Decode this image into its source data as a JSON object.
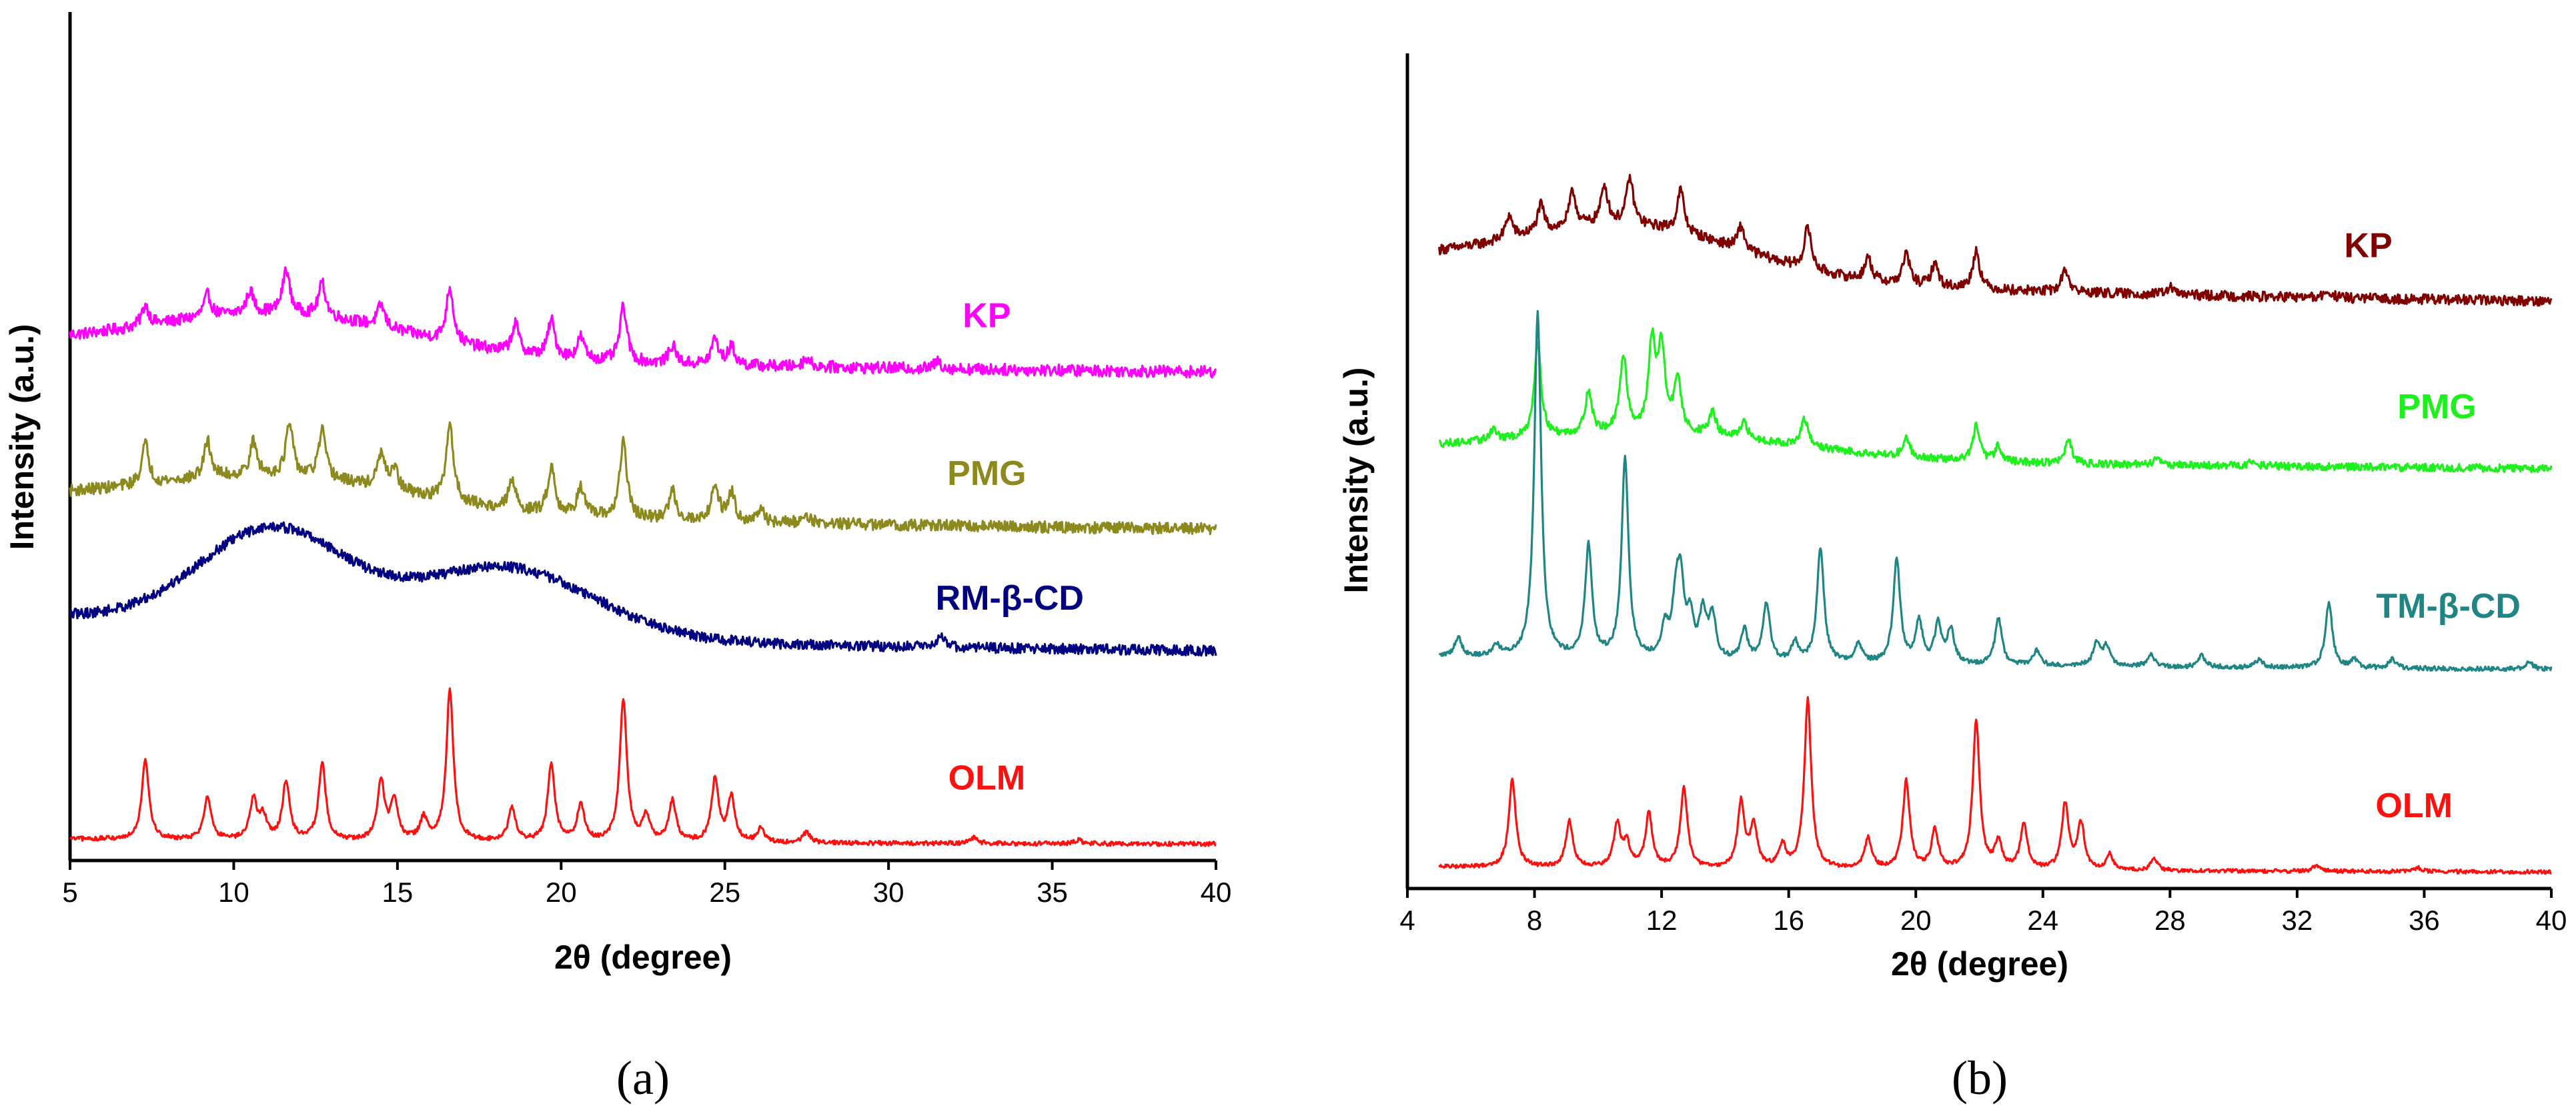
{
  "chart_data": [
    {
      "panel": "a",
      "caption": "(a)",
      "type": "line",
      "xlabel": "2θ (degree)",
      "ylabel": "Intensity (a.u.)",
      "xlim": [
        5,
        40
      ],
      "xticks": [
        5,
        10,
        15,
        20,
        25,
        30,
        35,
        40
      ],
      "y_ticks_shown": false,
      "grid": false,
      "series": [
        {
          "name": "KP",
          "color": "#ff00ff",
          "offset": 6.3,
          "noise": 0.16,
          "background": "kp_a",
          "points": [
            [
              5,
              0
            ],
            [
              7.3,
              0.28
            ],
            [
              9.2,
              0.3
            ],
            [
              10.5,
              0.3
            ],
            [
              11.6,
              0.6
            ],
            [
              12.7,
              0.45
            ],
            [
              14.5,
              0.3
            ],
            [
              16.6,
              0.75
            ],
            [
              18.6,
              0.4
            ],
            [
              19.7,
              0.5
            ],
            [
              20.6,
              0.3
            ],
            [
              21.9,
              0.75
            ],
            [
              23.4,
              0.25
            ],
            [
              24.7,
              0.35
            ],
            [
              25.2,
              0.25
            ],
            [
              27.5,
              0.12
            ],
            [
              31.5,
              0.1
            ],
            [
              40,
              0
            ]
          ]
        },
        {
          "name": "PMG",
          "color": "#8c8a1e",
          "offset": 4.15,
          "noise": 0.16,
          "background": "pmg_a",
          "points": [
            [
              5,
              0
            ],
            [
              7.3,
              0.55
            ],
            [
              9.2,
              0.5
            ],
            [
              10.6,
              0.45
            ],
            [
              11.7,
              0.7
            ],
            [
              12.7,
              0.65
            ],
            [
              14.5,
              0.45
            ],
            [
              14.9,
              0.3
            ],
            [
              16.6,
              1.05
            ],
            [
              18.5,
              0.4
            ],
            [
              19.7,
              0.65
            ],
            [
              20.6,
              0.4
            ],
            [
              21.9,
              1.05
            ],
            [
              23.4,
              0.4
            ],
            [
              24.7,
              0.5
            ],
            [
              25.2,
              0.4
            ],
            [
              26.1,
              0.15
            ],
            [
              27.5,
              0.12
            ],
            [
              40,
              0
            ]
          ]
        },
        {
          "name": "RM-β-CD",
          "color": "#000080",
          "offset": 2.45,
          "noise": 0.14,
          "background": "rmcd_a",
          "points": [
            [
              5,
              0
            ],
            [
              31.6,
              0.2
            ],
            [
              40,
              0
            ]
          ]
        },
        {
          "name": "OLM",
          "color": "#ff1010",
          "offset": 0,
          "noise": 0.06,
          "background": "olm",
          "points": [
            [
              5,
              0
            ],
            [
              7.3,
              1.1
            ],
            [
              9.2,
              0.6
            ],
            [
              10.6,
              0.55
            ],
            [
              10.9,
              0.3
            ],
            [
              11.6,
              0.8
            ],
            [
              12.7,
              1.05
            ],
            [
              14.5,
              0.8
            ],
            [
              14.9,
              0.55
            ],
            [
              15.8,
              0.3
            ],
            [
              16.6,
              2.05
            ],
            [
              18.5,
              0.45
            ],
            [
              19.7,
              1.05
            ],
            [
              20.6,
              0.5
            ],
            [
              21.9,
              1.95
            ],
            [
              22.6,
              0.35
            ],
            [
              23.4,
              0.55
            ],
            [
              24.7,
              0.85
            ],
            [
              25.2,
              0.6
            ],
            [
              26.1,
              0.2
            ],
            [
              27.5,
              0.15
            ],
            [
              32.6,
              0.08
            ],
            [
              35.8,
              0.05
            ],
            [
              40,
              0
            ]
          ]
        }
      ]
    },
    {
      "panel": "b",
      "caption": "(b)",
      "type": "line",
      "xlabel": "2θ (degree)",
      "ylabel": "Intensity (a.u.)",
      "xlim": [
        4,
        40
      ],
      "xticks": [
        4,
        8,
        12,
        16,
        20,
        24,
        28,
        32,
        36,
        40
      ],
      "y_ticks_shown": false,
      "grid": false,
      "series": [
        {
          "name": "KP",
          "color": "#800000",
          "offset": 7.3,
          "noise": 0.13,
          "background": "kp_b",
          "points": [
            [
              5,
              0
            ],
            [
              7.2,
              0.3
            ],
            [
              8.2,
              0.35
            ],
            [
              9.2,
              0.45
            ],
            [
              10.2,
              0.5
            ],
            [
              11.0,
              0.6
            ],
            [
              12.6,
              0.55
            ],
            [
              14.5,
              0.3
            ],
            [
              16.6,
              0.55
            ],
            [
              18.5,
              0.3
            ],
            [
              19.7,
              0.4
            ],
            [
              20.6,
              0.3
            ],
            [
              21.9,
              0.5
            ],
            [
              24.7,
              0.3
            ],
            [
              28,
              0.1
            ],
            [
              33,
              0.08
            ],
            [
              40,
              0
            ]
          ]
        },
        {
          "name": "PMG",
          "color": "#1ef01e",
          "offset": 5.2,
          "noise": 0.1,
          "background": "pmg_b",
          "points": [
            [
              5,
              0
            ],
            [
              6.7,
              0.15
            ],
            [
              8.1,
              1.25
            ],
            [
              9.7,
              0.55
            ],
            [
              10.8,
              1.0
            ],
            [
              11.7,
              1.15
            ],
            [
              12.0,
              1.05
            ],
            [
              12.5,
              0.7
            ],
            [
              13.6,
              0.3
            ],
            [
              14.6,
              0.2
            ],
            [
              16.5,
              0.35
            ],
            [
              19.7,
              0.25
            ],
            [
              21.9,
              0.45
            ],
            [
              22.6,
              0.2
            ],
            [
              24.8,
              0.3
            ],
            [
              27.6,
              0.1
            ],
            [
              30.6,
              0.08
            ],
            [
              40,
              0
            ]
          ]
        },
        {
          "name": "TM-β-CD",
          "color": "#208585",
          "offset": 2.6,
          "noise": 0.06,
          "background": "tmcd_b",
          "points": [
            [
              5,
              0
            ],
            [
              5.6,
              0.25
            ],
            [
              6.8,
              0.15
            ],
            [
              8.1,
              4.5
            ],
            [
              9.7,
              1.45
            ],
            [
              10.85,
              2.6
            ],
            [
              12.1,
              0.4
            ],
            [
              12.45,
              0.7
            ],
            [
              12.6,
              0.9
            ],
            [
              12.9,
              0.5
            ],
            [
              13.3,
              0.6
            ],
            [
              13.6,
              0.55
            ],
            [
              14.6,
              0.4
            ],
            [
              15.3,
              0.75
            ],
            [
              16.2,
              0.25
            ],
            [
              17.0,
              1.5
            ],
            [
              18.2,
              0.25
            ],
            [
              19.4,
              1.35
            ],
            [
              20.1,
              0.55
            ],
            [
              20.7,
              0.5
            ],
            [
              21.1,
              0.45
            ],
            [
              22.6,
              0.6
            ],
            [
              23.8,
              0.2
            ],
            [
              25.7,
              0.3
            ],
            [
              26.0,
              0.25
            ],
            [
              27.4,
              0.15
            ],
            [
              29.0,
              0.15
            ],
            [
              30.8,
              0.1
            ],
            [
              33.0,
              0.85
            ],
            [
              33.8,
              0.1
            ],
            [
              35.0,
              0.12
            ],
            [
              39.3,
              0.1
            ],
            [
              40,
              0
            ]
          ]
        },
        {
          "name": "OLM",
          "color": "#ff1010",
          "offset": 0,
          "noise": 0.05,
          "background": "olm",
          "points": [
            [
              5,
              0
            ],
            [
              7.3,
              1.15
            ],
            [
              9.1,
              0.6
            ],
            [
              10.6,
              0.55
            ],
            [
              10.9,
              0.3
            ],
            [
              11.6,
              0.7
            ],
            [
              12.7,
              1.05
            ],
            [
              14.5,
              0.85
            ],
            [
              14.9,
              0.55
            ],
            [
              15.8,
              0.3
            ],
            [
              16.6,
              2.2
            ],
            [
              18.5,
              0.4
            ],
            [
              19.7,
              1.15
            ],
            [
              20.6,
              0.5
            ],
            [
              21.9,
              1.95
            ],
            [
              22.6,
              0.35
            ],
            [
              23.4,
              0.6
            ],
            [
              24.7,
              0.85
            ],
            [
              25.2,
              0.6
            ],
            [
              26.1,
              0.2
            ],
            [
              27.5,
              0.15
            ],
            [
              32.6,
              0.08
            ],
            [
              35.8,
              0.05
            ],
            [
              40,
              0
            ]
          ]
        }
      ]
    }
  ]
}
